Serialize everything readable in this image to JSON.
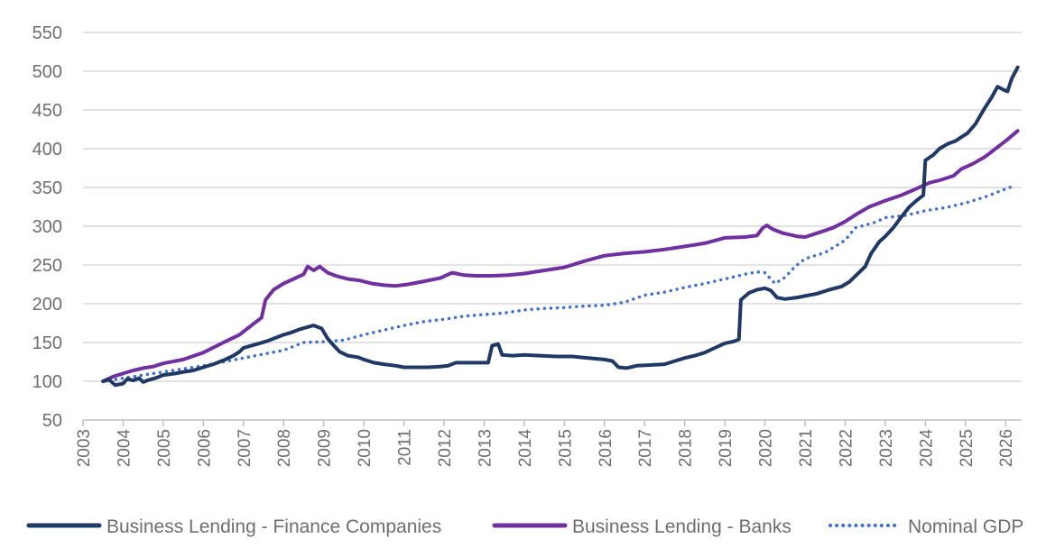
{
  "chart_data": {
    "type": "line",
    "title": "",
    "xlabel": "",
    "ylabel": "",
    "xlim": [
      2003,
      2026.4
    ],
    "ylim": [
      50,
      550
    ],
    "grid": "horizontal",
    "legend_position": "bottom",
    "y_ticks": [
      "50",
      "100",
      "150",
      "200",
      "250",
      "300",
      "350",
      "400",
      "450",
      "500",
      "550"
    ],
    "x_ticks": [
      "2003",
      "2004",
      "2005",
      "2006",
      "2007",
      "2008",
      "2009",
      "2010",
      "2011",
      "2012",
      "2013",
      "2014",
      "2015",
      "2016",
      "2017",
      "2018",
      "2019",
      "2020",
      "2021",
      "2022",
      "2023",
      "2024",
      "2025",
      "2026"
    ],
    "series": [
      {
        "name": "Business Lending - Finance Companies",
        "color": "#1f3864",
        "style": "solid",
        "points": [
          [
            2003.5,
            100
          ],
          [
            2003.65,
            102
          ],
          [
            2003.8,
            95
          ],
          [
            2004.0,
            97
          ],
          [
            2004.1,
            103
          ],
          [
            2004.25,
            101
          ],
          [
            2004.4,
            104
          ],
          [
            2004.5,
            99
          ],
          [
            2004.6,
            101
          ],
          [
            2004.8,
            104
          ],
          [
            2005.0,
            108
          ],
          [
            2005.3,
            110
          ],
          [
            2005.5,
            112
          ],
          [
            2005.75,
            114
          ],
          [
            2006.0,
            118
          ],
          [
            2006.25,
            122
          ],
          [
            2006.5,
            127
          ],
          [
            2006.75,
            133
          ],
          [
            2006.9,
            138
          ],
          [
            2007.0,
            143
          ],
          [
            2007.2,
            146
          ],
          [
            2007.4,
            149
          ],
          [
            2007.6,
            152
          ],
          [
            2007.8,
            156
          ],
          [
            2008.0,
            160
          ],
          [
            2008.2,
            163
          ],
          [
            2008.4,
            167
          ],
          [
            2008.6,
            170
          ],
          [
            2008.75,
            172
          ],
          [
            2008.95,
            168
          ],
          [
            2009.1,
            155
          ],
          [
            2009.25,
            146
          ],
          [
            2009.4,
            138
          ],
          [
            2009.6,
            133
          ],
          [
            2009.85,
            131
          ],
          [
            2010.0,
            128
          ],
          [
            2010.25,
            124
          ],
          [
            2010.5,
            122
          ],
          [
            2010.8,
            120
          ],
          [
            2011.0,
            118
          ],
          [
            2011.3,
            118
          ],
          [
            2011.6,
            118
          ],
          [
            2011.9,
            119
          ],
          [
            2012.1,
            120
          ],
          [
            2012.3,
            124
          ],
          [
            2012.6,
            124
          ],
          [
            2012.9,
            124
          ],
          [
            2013.1,
            124
          ],
          [
            2013.2,
            146
          ],
          [
            2013.35,
            148
          ],
          [
            2013.45,
            134
          ],
          [
            2013.7,
            133
          ],
          [
            2014.0,
            134
          ],
          [
            2014.4,
            133
          ],
          [
            2014.8,
            132
          ],
          [
            2015.2,
            132
          ],
          [
            2015.6,
            130
          ],
          [
            2016.0,
            128
          ],
          [
            2016.2,
            126
          ],
          [
            2016.35,
            118
          ],
          [
            2016.55,
            117
          ],
          [
            2016.8,
            120
          ],
          [
            2017.2,
            121
          ],
          [
            2017.5,
            122
          ],
          [
            2017.75,
            126
          ],
          [
            2018.0,
            130
          ],
          [
            2018.25,
            133
          ],
          [
            2018.5,
            137
          ],
          [
            2018.75,
            143
          ],
          [
            2019.0,
            149
          ],
          [
            2019.2,
            151
          ],
          [
            2019.35,
            154
          ],
          [
            2019.4,
            205
          ],
          [
            2019.6,
            214
          ],
          [
            2019.8,
            218
          ],
          [
            2020.0,
            220
          ],
          [
            2020.15,
            217
          ],
          [
            2020.3,
            208
          ],
          [
            2020.5,
            206
          ],
          [
            2020.8,
            208
          ],
          [
            2021.0,
            210
          ],
          [
            2021.3,
            213
          ],
          [
            2021.6,
            218
          ],
          [
            2021.9,
            222
          ],
          [
            2022.1,
            228
          ],
          [
            2022.3,
            238
          ],
          [
            2022.5,
            248
          ],
          [
            2022.65,
            265
          ],
          [
            2022.85,
            280
          ],
          [
            2023.0,
            287
          ],
          [
            2023.2,
            298
          ],
          [
            2023.4,
            312
          ],
          [
            2023.6,
            325
          ],
          [
            2023.8,
            334
          ],
          [
            2023.95,
            340
          ],
          [
            2024.0,
            385
          ],
          [
            2024.2,
            392
          ],
          [
            2024.35,
            400
          ],
          [
            2024.55,
            406
          ],
          [
            2024.75,
            410
          ],
          [
            2024.9,
            415
          ],
          [
            2025.05,
            420
          ],
          [
            2025.25,
            432
          ],
          [
            2025.45,
            450
          ],
          [
            2025.65,
            466
          ],
          [
            2025.8,
            480
          ],
          [
            2025.95,
            476
          ],
          [
            2026.05,
            474
          ],
          [
            2026.15,
            490
          ],
          [
            2026.3,
            505
          ]
        ]
      },
      {
        "name": "Business Lending - Banks",
        "color": "#7030a0",
        "style": "solid",
        "points": [
          [
            2003.5,
            100
          ],
          [
            2003.75,
            106
          ],
          [
            2004.0,
            110
          ],
          [
            2004.25,
            114
          ],
          [
            2004.5,
            117
          ],
          [
            2004.75,
            119
          ],
          [
            2005.0,
            123
          ],
          [
            2005.5,
            128
          ],
          [
            2006.0,
            137
          ],
          [
            2006.5,
            150
          ],
          [
            2006.9,
            160
          ],
          [
            2007.1,
            168
          ],
          [
            2007.3,
            176
          ],
          [
            2007.45,
            182
          ],
          [
            2007.55,
            205
          ],
          [
            2007.75,
            218
          ],
          [
            2008.0,
            226
          ],
          [
            2008.25,
            232
          ],
          [
            2008.5,
            238
          ],
          [
            2008.6,
            248
          ],
          [
            2008.75,
            243
          ],
          [
            2008.9,
            248
          ],
          [
            2009.1,
            240
          ],
          [
            2009.3,
            236
          ],
          [
            2009.6,
            232
          ],
          [
            2009.9,
            230
          ],
          [
            2010.2,
            226
          ],
          [
            2010.5,
            224
          ],
          [
            2010.8,
            223
          ],
          [
            2011.1,
            225
          ],
          [
            2011.5,
            229
          ],
          [
            2011.9,
            233
          ],
          [
            2012.2,
            240
          ],
          [
            2012.5,
            237
          ],
          [
            2012.8,
            236
          ],
          [
            2013.2,
            236
          ],
          [
            2013.6,
            237
          ],
          [
            2014.0,
            239
          ],
          [
            2014.5,
            243
          ],
          [
            2015.0,
            247
          ],
          [
            2015.5,
            255
          ],
          [
            2016.0,
            262
          ],
          [
            2016.5,
            265
          ],
          [
            2017.0,
            267
          ],
          [
            2017.5,
            270
          ],
          [
            2018.0,
            274
          ],
          [
            2018.5,
            278
          ],
          [
            2019.0,
            285
          ],
          [
            2019.5,
            286
          ],
          [
            2019.8,
            288
          ],
          [
            2019.95,
            298
          ],
          [
            2020.05,
            301
          ],
          [
            2020.2,
            296
          ],
          [
            2020.45,
            291
          ],
          [
            2020.8,
            287
          ],
          [
            2021.0,
            286
          ],
          [
            2021.3,
            291
          ],
          [
            2021.7,
            298
          ],
          [
            2022.0,
            306
          ],
          [
            2022.3,
            316
          ],
          [
            2022.6,
            325
          ],
          [
            2023.0,
            333
          ],
          [
            2023.4,
            340
          ],
          [
            2023.8,
            349
          ],
          [
            2024.1,
            356
          ],
          [
            2024.4,
            360
          ],
          [
            2024.7,
            365
          ],
          [
            2024.9,
            374
          ],
          [
            2025.2,
            381
          ],
          [
            2025.5,
            390
          ],
          [
            2025.8,
            402
          ],
          [
            2026.05,
            412
          ],
          [
            2026.3,
            423
          ]
        ]
      },
      {
        "name": "Nominal GDP",
        "color": "#4472c4",
        "style": "dotted",
        "points": [
          [
            2003.5,
            100
          ],
          [
            2004.0,
            104
          ],
          [
            2004.5,
            108
          ],
          [
            2005.0,
            112
          ],
          [
            2005.5,
            116
          ],
          [
            2006.0,
            120
          ],
          [
            2006.5,
            125
          ],
          [
            2007.0,
            130
          ],
          [
            2007.5,
            135
          ],
          [
            2008.0,
            140
          ],
          [
            2008.5,
            150
          ],
          [
            2009.0,
            151
          ],
          [
            2009.5,
            153
          ],
          [
            2010.0,
            160
          ],
          [
            2010.5,
            166
          ],
          [
            2011.0,
            172
          ],
          [
            2011.5,
            177
          ],
          [
            2012.0,
            180
          ],
          [
            2012.5,
            184
          ],
          [
            2013.0,
            186
          ],
          [
            2013.5,
            188
          ],
          [
            2014.0,
            192
          ],
          [
            2014.5,
            194
          ],
          [
            2015.0,
            195
          ],
          [
            2015.5,
            197
          ],
          [
            2016.0,
            198
          ],
          [
            2016.5,
            202
          ],
          [
            2017.0,
            211
          ],
          [
            2017.5,
            215
          ],
          [
            2018.0,
            221
          ],
          [
            2018.5,
            226
          ],
          [
            2019.0,
            232
          ],
          [
            2019.5,
            238
          ],
          [
            2019.8,
            241
          ],
          [
            2020.0,
            240
          ],
          [
            2020.25,
            226
          ],
          [
            2020.5,
            234
          ],
          [
            2020.75,
            248
          ],
          [
            2021.0,
            258
          ],
          [
            2021.5,
            266
          ],
          [
            2022.0,
            282
          ],
          [
            2022.25,
            298
          ],
          [
            2022.75,
            305
          ],
          [
            2023.0,
            311
          ],
          [
            2023.5,
            314
          ],
          [
            2024.0,
            320
          ],
          [
            2024.5,
            324
          ],
          [
            2025.0,
            330
          ],
          [
            2025.5,
            338
          ],
          [
            2026.0,
            348
          ],
          [
            2026.25,
            353
          ]
        ]
      }
    ]
  }
}
